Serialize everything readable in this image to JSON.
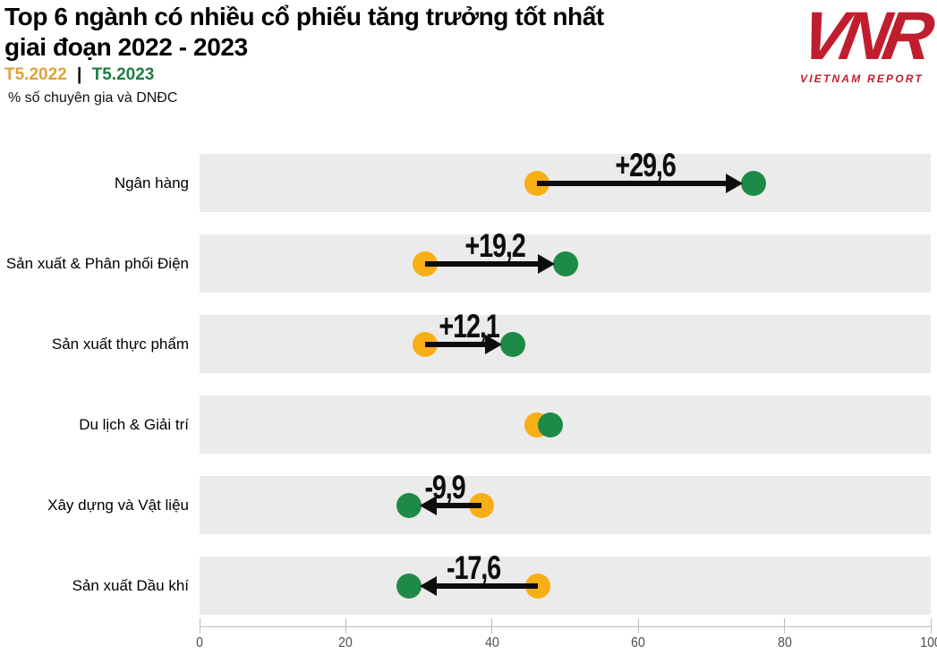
{
  "header": {
    "title_line1": "Top 6 ngành có nhiều cổ phiếu tăng trưởng tốt nhất",
    "title_line2": "giai đoạn 2022 - 2023",
    "legend_2022": "T5.2022",
    "legend_separator": "|",
    "legend_2023": "T5.2023",
    "subtitle": "% số chuyên gia và DNĐC"
  },
  "logo": {
    "mark": "VNR",
    "caption": "VIETNAM REPORT"
  },
  "colors": {
    "dot_2022_yellow": "#F8AE15",
    "dot_2023_green": "#1E8A47",
    "legend_yellow": "#E0A339",
    "legend_green": "#1F7B43",
    "row_band_grey": "#EBEBEB",
    "arrow_black": "#0d0d0d",
    "logo_red": "#C01E2F"
  },
  "chart_data": {
    "type": "dumbbell",
    "title": "Top 6 ngành có nhiều cổ phiếu tăng trưởng tốt nhất giai đoạn 2022 - 2023",
    "subtitle": "% số chuyên gia và DNĐC",
    "categories": [
      "Ngân hàng",
      "Sản xuất & Phân phối Điện",
      "Sản xuất thực phẩm",
      "Du lịch & Giải trí",
      "Xây dựng và Vật liệu",
      "Sản xuất Dầu khí"
    ],
    "series": [
      {
        "name": "T5.2022",
        "color": "#F8AE15",
        "values": [
          46.2,
          30.8,
          30.8,
          46.1,
          38.5,
          46.3
        ]
      },
      {
        "name": "T5.2023",
        "color": "#1E8A47",
        "values": [
          75.8,
          50.0,
          42.9,
          48.0,
          28.6,
          28.7
        ]
      }
    ],
    "change_labels": [
      "+29,6",
      "+19,2",
      "+12,1",
      "",
      "-9,9",
      "-17,6"
    ],
    "xlim": [
      0,
      100
    ],
    "x_ticks": [
      0,
      20,
      40,
      60,
      80,
      100
    ],
    "grid": false,
    "legend_position": "top-left"
  }
}
